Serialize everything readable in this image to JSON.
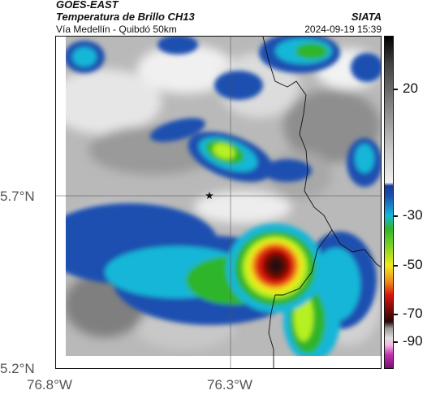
{
  "header": {
    "satellite": "GOES-EAST",
    "product": "Temperatura de Brillo CH13",
    "route": "Vía Medellín - Quibdó 50km",
    "organization": "SIATA",
    "timestamp": "2024-09-19 15:39"
  },
  "axes": {
    "lat_ticks": [
      "5.7°N",
      "5.2°N"
    ],
    "lon_ticks": [
      "76.8°W",
      "76.3°W"
    ]
  },
  "colorbar": {
    "labels": [
      "20",
      "-30",
      "-50",
      "-70",
      "-90"
    ]
  },
  "colors": {
    "warm_gray": "#b0b0b0",
    "cloud_blue": "#1a4fb0",
    "cloud_cyan": "#19b6d8",
    "cloud_green": "#2fb52a",
    "cloud_lime": "#b5f021",
    "cloud_yellow": "#f2ea1c",
    "cloud_red": "#d8140e",
    "cloud_dark": "#2a0808"
  },
  "markers": {
    "location_icon": "star-icon"
  }
}
